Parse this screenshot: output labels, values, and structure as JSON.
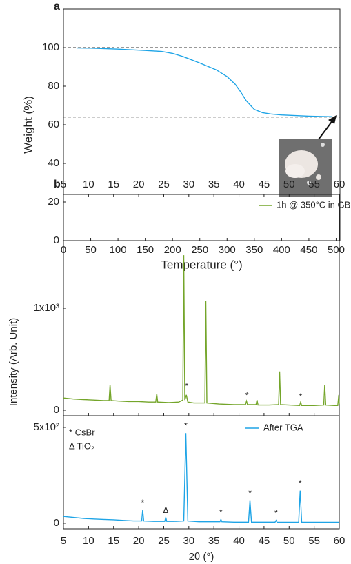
{
  "chart_data": [
    {
      "type": "line",
      "panel_label": "a",
      "xlabel": "Temperature (°)",
      "ylabel": "Weight (%)",
      "xlim": [
        0,
        507
      ],
      "xticks": [
        0,
        50,
        100,
        150,
        200,
        250,
        300,
        350,
        400,
        450,
        500
      ],
      "ylim": [
        0,
        120
      ],
      "yticks": [
        0,
        20,
        40,
        60,
        80,
        100
      ],
      "reference_lines": [
        100,
        64
      ],
      "series": [
        {
          "color": "#1ea4e6",
          "x": [
            25,
            50,
            100,
            150,
            180,
            200,
            220,
            250,
            280,
            300,
            315,
            325,
            335,
            350,
            365,
            380,
            400,
            425,
            450,
            475,
            492
          ],
          "values": [
            99.8,
            99.7,
            99.2,
            98.5,
            98.0,
            97.0,
            95.3,
            92.0,
            88.5,
            85.0,
            81.0,
            77.0,
            72.5,
            68.0,
            66.3,
            65.6,
            65.1,
            64.8,
            64.5,
            64.3,
            64.2
          ]
        }
      ]
    },
    {
      "type": "line",
      "panel_label": "b",
      "xlabel": "2θ (°)",
      "ylabel": "Intensity (Arb. Unit)",
      "xlim": [
        5,
        60
      ],
      "xticks": [
        5,
        10,
        15,
        20,
        25,
        30,
        35,
        40,
        45,
        50,
        55,
        60
      ],
      "phase_legend": [
        "* CsBr",
        "Δ TiO₂"
      ],
      "panels": [
        {
          "ylim": [
            -54,
            2115
          ],
          "yticks": [
            0,
            {
              "value": 1000,
              "label": "1x10³"
            }
          ],
          "series": [
            {
              "name": "1h @ 350°C in GB",
              "color": "#74a52a",
              "x": [
                5,
                7,
                9,
                11,
                13,
                14.1,
                14.3,
                14.5,
                16,
                18,
                20,
                22,
                23.4,
                23.6,
                23.8,
                26,
                28,
                28.8,
                29.0,
                29.2,
                29.5,
                29.8,
                31,
                33.2,
                33.4,
                33.6,
                36,
                39,
                41.3,
                41.5,
                41.7,
                43.4,
                43.6,
                43.8,
                46,
                47.9,
                48.1,
                48.3,
                50,
                52.1,
                52.3,
                52.5,
                55,
                56.9,
                57.1,
                57.3,
                59,
                59.7,
                59.9,
                60
              ],
              "values": [
                120,
                110,
                105,
                100,
                95,
                95,
                250,
                95,
                90,
                85,
                85,
                80,
                80,
                160,
                80,
                75,
                80,
                100,
                1520,
                100,
                150,
                80,
                70,
                70,
                1070,
                70,
                60,
                55,
                55,
                90,
                55,
                55,
                100,
                50,
                50,
                55,
                380,
                55,
                50,
                45,
                80,
                45,
                45,
                50,
                250,
                50,
                45,
                45,
                150,
                60
              ]
            }
          ],
          "annotations": [
            {
              "text": "*",
              "x": 29.6,
              "y": 230
            },
            {
              "text": "*",
              "x": 41.6,
              "y": 140
            },
            {
              "text": "*",
              "x": 52.3,
              "y": 130
            }
          ]
        },
        {
          "ylim": [
            -29,
            561
          ],
          "yticks": [
            0,
            {
              "value": 500,
              "label": "5x10²"
            }
          ],
          "series": [
            {
              "name": "After TGA",
              "color": "#1ea4e6",
              "x": [
                5,
                7,
                9,
                11,
                13,
                15,
                17,
                19,
                20.6,
                20.8,
                21.0,
                23,
                25.2,
                25.4,
                25.6,
                27,
                29.0,
                29.4,
                29.8,
                32,
                34,
                36.2,
                36.4,
                36.6,
                39,
                41.9,
                42.2,
                42.5,
                45,
                47.2,
                47.4,
                47.6,
                50,
                51.9,
                52.2,
                52.5,
                55,
                58,
                60
              ],
              "values": [
                35,
                30,
                25,
                22,
                20,
                18,
                15,
                12,
                12,
                70,
                12,
                10,
                10,
                30,
                10,
                10,
                12,
                470,
                12,
                8,
                8,
                8,
                20,
                8,
                6,
                6,
                120,
                6,
                6,
                6,
                15,
                6,
                5,
                5,
                170,
                5,
                5,
                5,
                5
              ]
            }
          ],
          "annotations": [
            {
              "text": "*",
              "x": 20.8,
              "y": 105
            },
            {
              "text": "Δ",
              "x": 25.4,
              "y": 65
            },
            {
              "text": "*",
              "x": 29.4,
              "y": 505
            },
            {
              "text": "*",
              "x": 36.4,
              "y": 55
            },
            {
              "text": "*",
              "x": 42.2,
              "y": 155
            },
            {
              "text": "*",
              "x": 47.4,
              "y": 50
            },
            {
              "text": "*",
              "x": 52.2,
              "y": 205
            }
          ]
        }
      ]
    }
  ]
}
